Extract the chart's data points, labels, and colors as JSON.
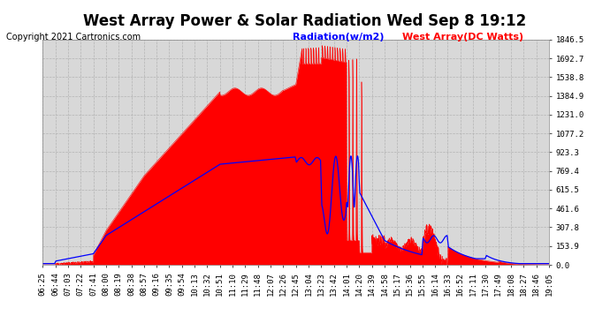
{
  "title": "West Array Power & Solar Radiation Wed Sep 8 19:12",
  "copyright": "Copyright 2021 Cartronics.com",
  "legend_radiation": "Radiation(w/m2)",
  "legend_west": "West Array(DC Watts)",
  "bg_color": "#ffffff",
  "plot_bg_color": "#d8d8d8",
  "grid_color": "#aaaaaa",
  "radiation_color": "#0000ff",
  "west_color": "#ff0000",
  "west_fill_color": "#ff0000",
  "yticks": [
    0.0,
    153.9,
    307.8,
    461.6,
    615.5,
    769.4,
    923.3,
    1077.2,
    1231.0,
    1384.9,
    1538.8,
    1692.7,
    1846.5
  ],
  "ymax": 1846.5,
  "xtick_labels": [
    "06:25",
    "06:44",
    "07:03",
    "07:22",
    "07:41",
    "08:00",
    "08:19",
    "08:38",
    "08:57",
    "09:16",
    "09:35",
    "09:54",
    "10:13",
    "10:32",
    "10:51",
    "11:10",
    "11:29",
    "11:48",
    "12:07",
    "12:26",
    "12:45",
    "13:04",
    "13:23",
    "13:42",
    "14:01",
    "14:20",
    "14:39",
    "14:58",
    "15:17",
    "15:36",
    "15:55",
    "16:14",
    "16:33",
    "16:52",
    "17:11",
    "17:30",
    "17:49",
    "18:08",
    "18:27",
    "18:46",
    "19:05"
  ],
  "title_fontsize": 12,
  "copyright_fontsize": 7,
  "tick_fontsize": 6.5,
  "legend_fontsize": 8,
  "title_color": "#000000",
  "tick_color": "#000000",
  "copyright_color": "#000000"
}
